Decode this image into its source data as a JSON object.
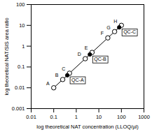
{
  "chart_data": {
    "type": "scatter",
    "x_label": "log theoretical NAT concentration (LLOQ/µl)",
    "y_label": "log theoretical NAT/SIS area ratio",
    "log": true,
    "grid": false,
    "xlim": [
      0.01,
      1000
    ],
    "ylim": [
      0.001,
      100
    ],
    "xticks": [
      0.01,
      0.1,
      1,
      10,
      100,
      1000
    ],
    "yticks": [
      0.001,
      0.01,
      0.1,
      1,
      10,
      100
    ],
    "series": [
      {
        "type": "line",
        "color": "#000000",
        "line_style": "solid",
        "x": [
          0.1,
          100
        ],
        "y": [
          0.01,
          10
        ]
      },
      {
        "type": "scatter",
        "marker": "open",
        "color": "#000000",
        "x": [
          0.1,
          0.25,
          0.5,
          2.5,
          5,
          25,
          50,
          100
        ],
        "y": [
          0.01,
          0.025,
          0.05,
          0.25,
          0.5,
          2.5,
          5,
          10
        ],
        "labels": [
          "A",
          "B",
          "C",
          "D",
          "E",
          "F",
          "G",
          "H"
        ]
      },
      {
        "type": "scatter",
        "marker": "filled",
        "color": "#000000",
        "x": [
          0.4,
          4,
          80
        ],
        "y": [
          0.04,
          0.4,
          8
        ],
        "labels": [
          "QC-A",
          "QC-B",
          "QC-C"
        ]
      }
    ]
  }
}
